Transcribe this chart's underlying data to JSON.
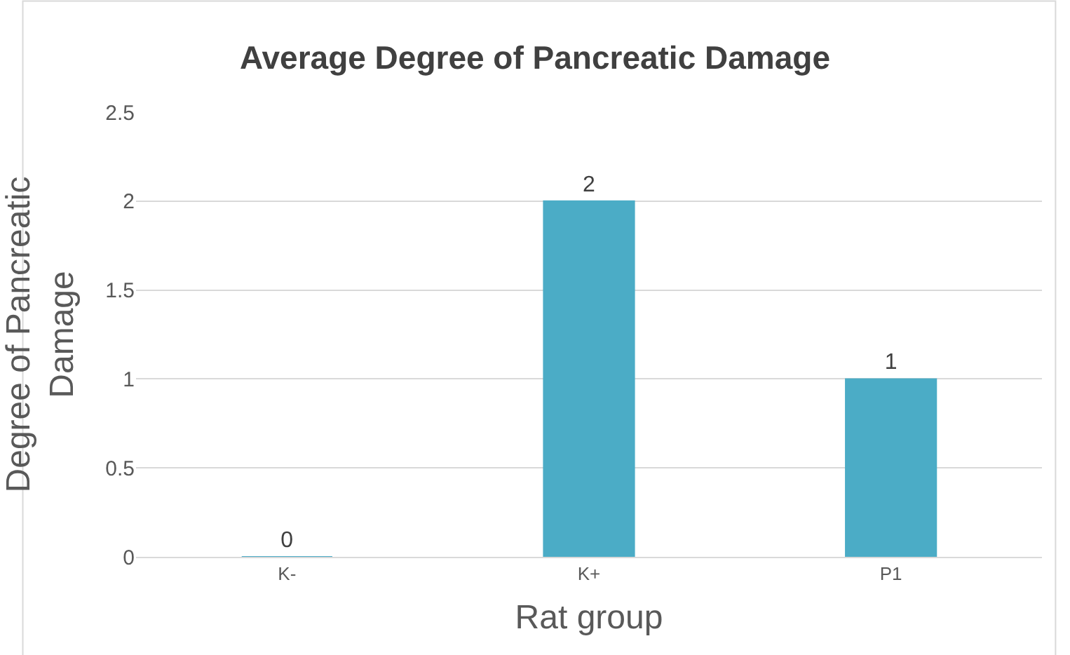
{
  "chart_data": {
    "type": "bar",
    "title": "Average Degree of Pancreatic Damage",
    "xlabel": "Rat group",
    "ylabel": "Degree of Pancreatic Damage",
    "categories": [
      "K-",
      "K+",
      "P1"
    ],
    "values": [
      0,
      2,
      1
    ],
    "color": "#4bacc6",
    "ylim": [
      0,
      2.5
    ],
    "yticks": [
      0,
      0.5,
      1,
      1.5,
      2,
      2.5
    ],
    "grid": "y",
    "data_labels": true
  }
}
